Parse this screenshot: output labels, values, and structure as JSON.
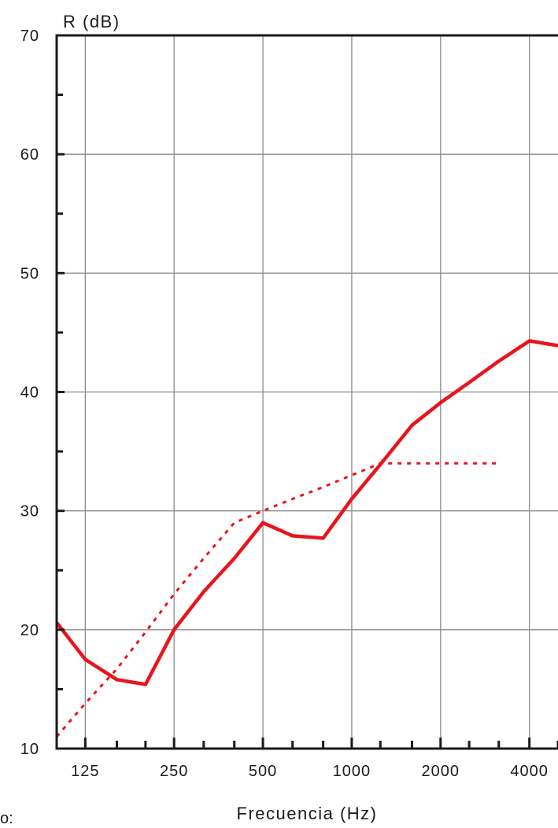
{
  "chart_data": {
    "type": "line",
    "title": "",
    "ylabel": "R (dB)",
    "xlabel": "Frecuencia (Hz)",
    "ylim": [
      10,
      70
    ],
    "y_ticks": [
      10,
      20,
      30,
      40,
      50,
      60,
      70
    ],
    "x_scale": "log",
    "xlim": [
      100,
      5000
    ],
    "x_ticks": [
      125,
      250,
      500,
      1000,
      2000,
      4000
    ],
    "grid": true,
    "series": [
      {
        "style": "solid",
        "color": "#e8141c",
        "points": [
          [
            100,
            20.6
          ],
          [
            125,
            17.5
          ],
          [
            160,
            15.8
          ],
          [
            200,
            15.4
          ],
          [
            250,
            20
          ],
          [
            315,
            23.2
          ],
          [
            400,
            26
          ],
          [
            500,
            29
          ],
          [
            630,
            27.9
          ],
          [
            800,
            27.7
          ],
          [
            1000,
            31
          ],
          [
            1250,
            33.9
          ],
          [
            1600,
            37.2
          ],
          [
            2000,
            39.1
          ],
          [
            2500,
            40.8
          ],
          [
            3150,
            42.6
          ],
          [
            4000,
            44.3
          ],
          [
            5000,
            43.9
          ]
        ]
      },
      {
        "style": "dotted",
        "color": "#e8141c",
        "points": [
          [
            100,
            11
          ],
          [
            125,
            13.8
          ],
          [
            160,
            16.7
          ],
          [
            200,
            19.8
          ],
          [
            250,
            23
          ],
          [
            315,
            26
          ],
          [
            400,
            29
          ],
          [
            500,
            30
          ],
          [
            630,
            31
          ],
          [
            800,
            32
          ],
          [
            1000,
            33
          ],
          [
            1250,
            34
          ],
          [
            1600,
            34
          ],
          [
            2000,
            34
          ],
          [
            2500,
            34
          ],
          [
            3150,
            34
          ]
        ]
      }
    ]
  },
  "footer": {
    "partial_label": "o:"
  }
}
